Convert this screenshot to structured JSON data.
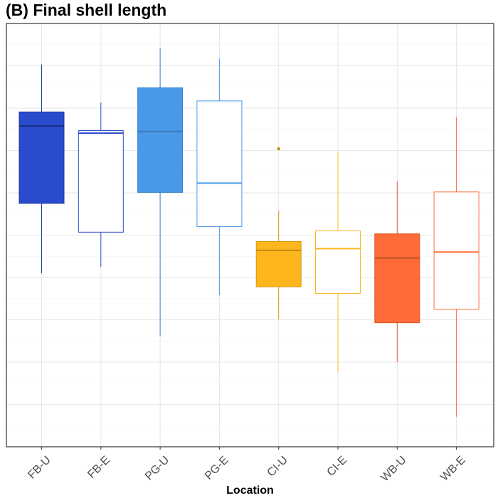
{
  "chart_data": {
    "type": "box",
    "title": "(B) Final shell length",
    "xlabel": "Location",
    "ylabel": "",
    "categories": [
      "FB-U",
      "FB-E",
      "PG-U",
      "PG-E",
      "CI-U",
      "CI-E",
      "WB-U",
      "WB-E"
    ],
    "ylim": [
      0,
      100
    ],
    "grid": true,
    "legend": "none",
    "boxes": [
      {
        "category": "FB-U",
        "whisker_low": 41,
        "q1": 57.5,
        "median": 75.8,
        "q3": 79.1,
        "whisker_high": 90.3,
        "outliers": [],
        "filled": true,
        "fill": "#2a4bcb",
        "stroke": "#1f3aa6",
        "median_color": "#1a2f86"
      },
      {
        "category": "FB-E",
        "whisker_low": 42.5,
        "q1": 50.7,
        "median": 74.1,
        "q3": 74.7,
        "whisker_high": 81.3,
        "outliers": [],
        "filled": false,
        "fill": "#ffffff",
        "stroke": "#2a4bcb",
        "median_color": "#2a4bcb"
      },
      {
        "category": "PG-U",
        "whisker_low": 26.1,
        "q1": 60.1,
        "median": 74.5,
        "q3": 84.8,
        "whisker_high": 94.2,
        "outliers": [],
        "filled": true,
        "fill": "#4a98e8",
        "stroke": "#2f7fd0",
        "median_color": "#3a78b8"
      },
      {
        "category": "PG-E",
        "whisker_low": 35.8,
        "q1": 52.0,
        "median": 62.3,
        "q3": 81.7,
        "whisker_high": 91.7,
        "outliers": [],
        "filled": false,
        "fill": "#ffffff",
        "stroke": "#4a98e8",
        "median_color": "#4a98e8"
      },
      {
        "category": "CI-U",
        "whisker_low": 30.1,
        "q1": 37.8,
        "median": 46.4,
        "q3": 48.5,
        "whisker_high": 55.8,
        "outliers": [
          70.4
        ],
        "filled": true,
        "fill": "#fdb71d",
        "stroke": "#d9960e",
        "median_color": "#c58a10"
      },
      {
        "category": "CI-E",
        "whisker_low": 17.6,
        "q1": 36.2,
        "median": 46.8,
        "q3": 51.0,
        "whisker_high": 69.7,
        "outliers": [],
        "filled": false,
        "fill": "#ffffff",
        "stroke": "#fdb71d",
        "median_color": "#fdb71d"
      },
      {
        "category": "WB-U",
        "whisker_low": 20.0,
        "q1": 29.3,
        "median": 44.6,
        "q3": 50.3,
        "whisker_high": 62.7,
        "outliers": [],
        "filled": true,
        "fill": "#ff6b38",
        "stroke": "#e25523",
        "median_color": "#b8501f"
      },
      {
        "category": "WB-E",
        "whisker_low": 7.1,
        "q1": 32.5,
        "median": 46.0,
        "q3": 60.2,
        "whisker_high": 77.9,
        "outliers": [],
        "filled": false,
        "fill": "#ffffff",
        "stroke": "#ff6b38",
        "median_color": "#ff6b38"
      }
    ]
  }
}
